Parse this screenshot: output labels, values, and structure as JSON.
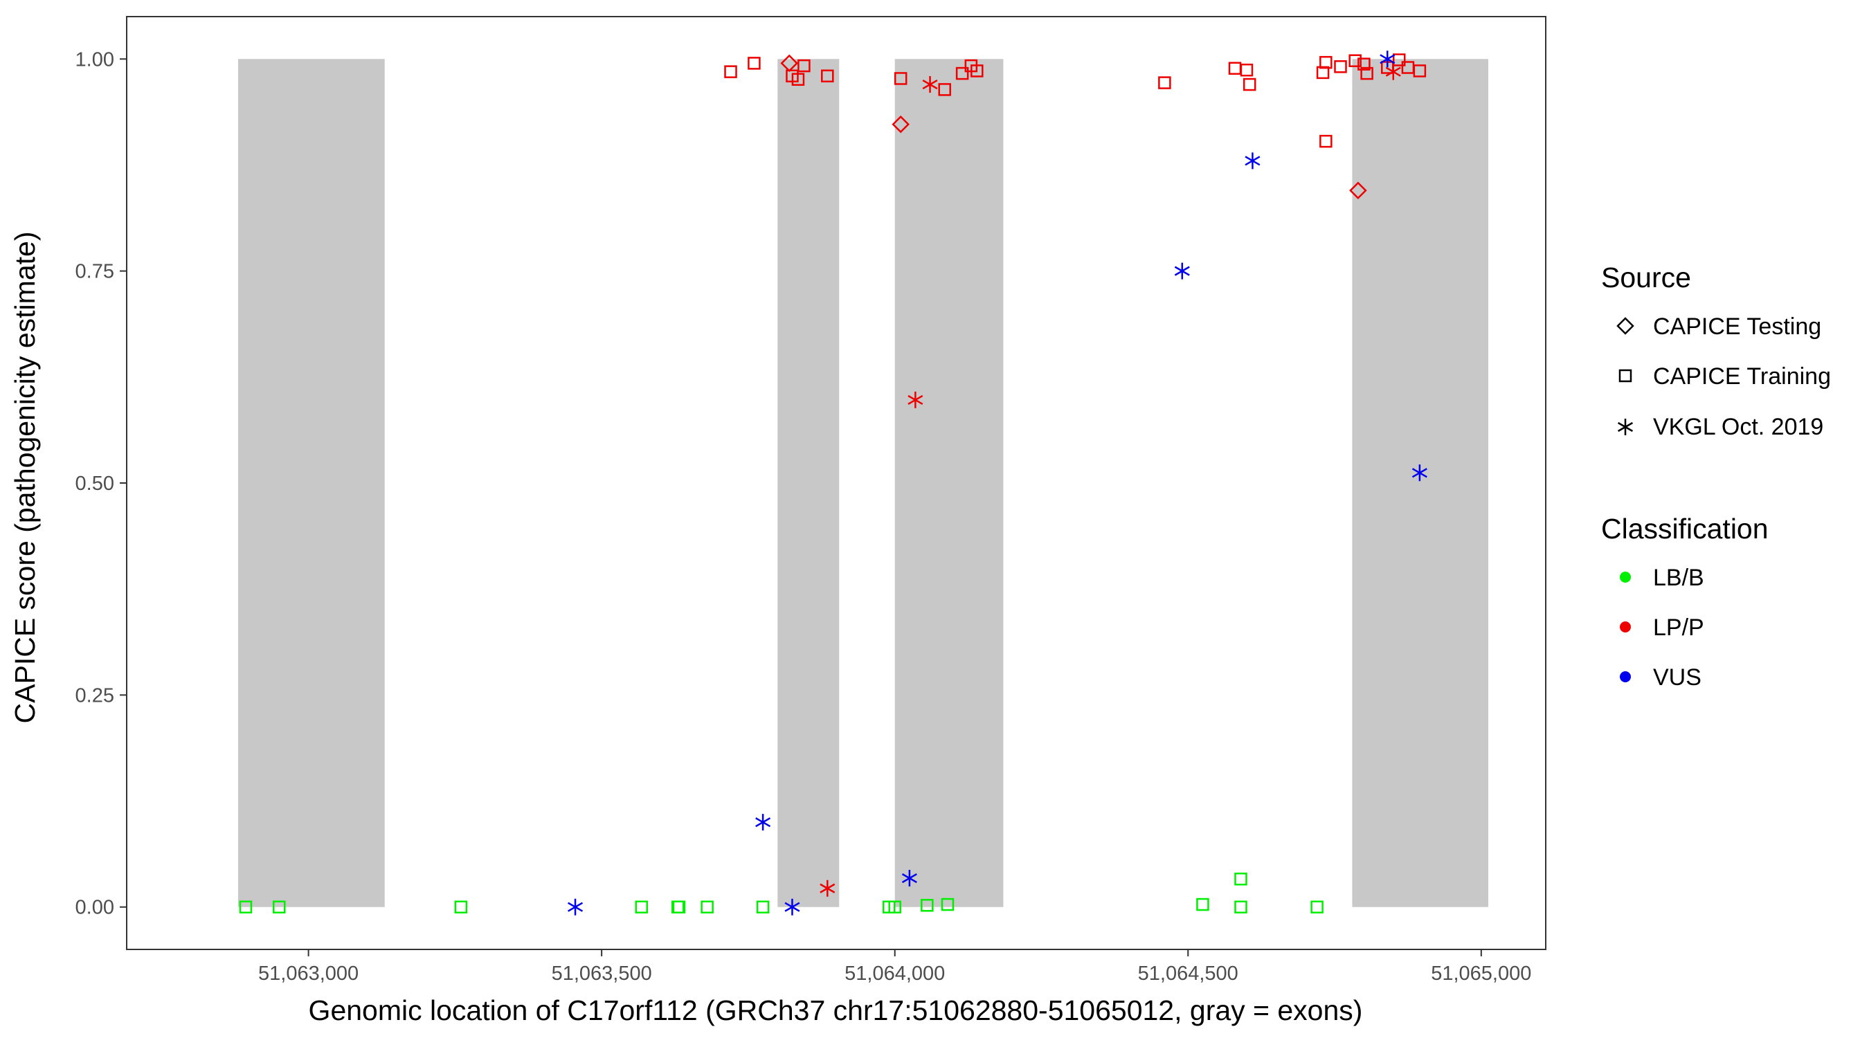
{
  "chart_data": {
    "type": "scatter",
    "xlabel": "Genomic location of C17orf112 (GRCh37 chr17:51062880-51065012, gray = exons)",
    "ylabel": "CAPICE score (pathogenicity estimate)",
    "xlim": [
      51062690,
      51065110
    ],
    "ylim": [
      -0.05,
      1.05
    ],
    "x_ticks": [
      51063000,
      51063500,
      51064000,
      51064500,
      51065000
    ],
    "x_tick_labels": [
      "51,063,000",
      "51,063,500",
      "51,064,000",
      "51,064,500",
      "51,065,000"
    ],
    "y_ticks": [
      0,
      0.25,
      0.5,
      0.75,
      1
    ],
    "y_tick_labels": [
      "0.00",
      "0.25",
      "0.50",
      "0.75",
      "1.00"
    ],
    "exons": [
      {
        "start": 51062880,
        "end": 51063130,
        "color": "#c8c8c8"
      },
      {
        "start": 51063800,
        "end": 51063905,
        "color": "#c8c8c8"
      },
      {
        "start": 51064000,
        "end": 51064185,
        "color": "#c8c8c8"
      },
      {
        "start": 51064780,
        "end": 51065012,
        "color": "#c8c8c8"
      }
    ],
    "grid": false,
    "legend_position": "right",
    "legends": [
      {
        "title": "Source",
        "entries": [
          {
            "label": "CAPICE Testing",
            "shape": "diamond"
          },
          {
            "label": "CAPICE Training",
            "shape": "square"
          },
          {
            "label": "VKGL Oct. 2019",
            "shape": "star"
          }
        ]
      },
      {
        "title": "Classification",
        "entries": [
          {
            "label": "LB/B",
            "color": "#00ee00"
          },
          {
            "label": "LP/P",
            "color": "#ee0000"
          },
          {
            "label": "VUS",
            "color": "#0000ee"
          }
        ]
      }
    ],
    "series": [
      {
        "source": "CAPICE Training",
        "classification": "LB/B",
        "shape": "square",
        "color": "#00ee00",
        "points": [
          {
            "x": 51062893,
            "y": 0.0
          },
          {
            "x": 51062950,
            "y": 0.0
          },
          {
            "x": 51063260,
            "y": 0.0
          },
          {
            "x": 51063568,
            "y": 0.0
          },
          {
            "x": 51063630,
            "y": 0.0
          },
          {
            "x": 51063632,
            "y": 0.0
          },
          {
            "x": 51063680,
            "y": 0.0
          },
          {
            "x": 51063775,
            "y": 0.0
          },
          {
            "x": 51063990,
            "y": 0.0
          },
          {
            "x": 51064000,
            "y": 0.0
          },
          {
            "x": 51064055,
            "y": 0.002
          },
          {
            "x": 51064090,
            "y": 0.003
          },
          {
            "x": 51064525,
            "y": 0.003
          },
          {
            "x": 51064590,
            "y": 0.0
          },
          {
            "x": 51064590,
            "y": 0.033
          },
          {
            "x": 51064720,
            "y": 0.0
          }
        ]
      },
      {
        "source": "CAPICE Training",
        "classification": "LP/P",
        "shape": "square",
        "color": "#ee0000",
        "points": [
          {
            "x": 51063720,
            "y": 0.985
          },
          {
            "x": 51063760,
            "y": 0.995
          },
          {
            "x": 51063825,
            "y": 0.98
          },
          {
            "x": 51063835,
            "y": 0.976
          },
          {
            "x": 51063845,
            "y": 0.992
          },
          {
            "x": 51063885,
            "y": 0.98
          },
          {
            "x": 51064010,
            "y": 0.977
          },
          {
            "x": 51064085,
            "y": 0.964
          },
          {
            "x": 51064115,
            "y": 0.983
          },
          {
            "x": 51064130,
            "y": 0.992
          },
          {
            "x": 51064140,
            "y": 0.986
          },
          {
            "x": 51064460,
            "y": 0.972
          },
          {
            "x": 51064580,
            "y": 0.989
          },
          {
            "x": 51064600,
            "y": 0.987
          },
          {
            "x": 51064605,
            "y": 0.97
          },
          {
            "x": 51064730,
            "y": 0.984
          },
          {
            "x": 51064735,
            "y": 0.996
          },
          {
            "x": 51064735,
            "y": 0.903
          },
          {
            "x": 51064760,
            "y": 0.991
          },
          {
            "x": 51064785,
            "y": 0.998
          },
          {
            "x": 51064800,
            "y": 0.994
          },
          {
            "x": 51064805,
            "y": 0.983
          },
          {
            "x": 51064840,
            "y": 0.99
          },
          {
            "x": 51064860,
            "y": 0.999
          },
          {
            "x": 51064875,
            "y": 0.99
          },
          {
            "x": 51064895,
            "y": 0.986
          }
        ]
      },
      {
        "source": "CAPICE Testing",
        "classification": "LP/P",
        "shape": "diamond",
        "color": "#ee0000",
        "points": [
          {
            "x": 51063820,
            "y": 0.995
          },
          {
            "x": 51064010,
            "y": 0.923
          },
          {
            "x": 51064790,
            "y": 0.845
          }
        ]
      },
      {
        "source": "VKGL Oct. 2019",
        "classification": "LP/P",
        "shape": "star",
        "color": "#ee0000",
        "points": [
          {
            "x": 51063885,
            "y": 0.022
          },
          {
            "x": 51064035,
            "y": 0.598
          },
          {
            "x": 51064060,
            "y": 0.97
          },
          {
            "x": 51064850,
            "y": 0.985
          }
        ]
      },
      {
        "source": "VKGL Oct. 2019",
        "classification": "VUS",
        "shape": "star",
        "color": "#0000ee",
        "points": [
          {
            "x": 51063455,
            "y": 0.0
          },
          {
            "x": 51063775,
            "y": 0.1
          },
          {
            "x": 51063825,
            "y": 0.0
          },
          {
            "x": 51064025,
            "y": 0.034
          },
          {
            "x": 51064490,
            "y": 0.75
          },
          {
            "x": 51064610,
            "y": 0.88
          },
          {
            "x": 51064840,
            "y": 1.0
          },
          {
            "x": 51064895,
            "y": 0.512
          }
        ]
      }
    ]
  }
}
